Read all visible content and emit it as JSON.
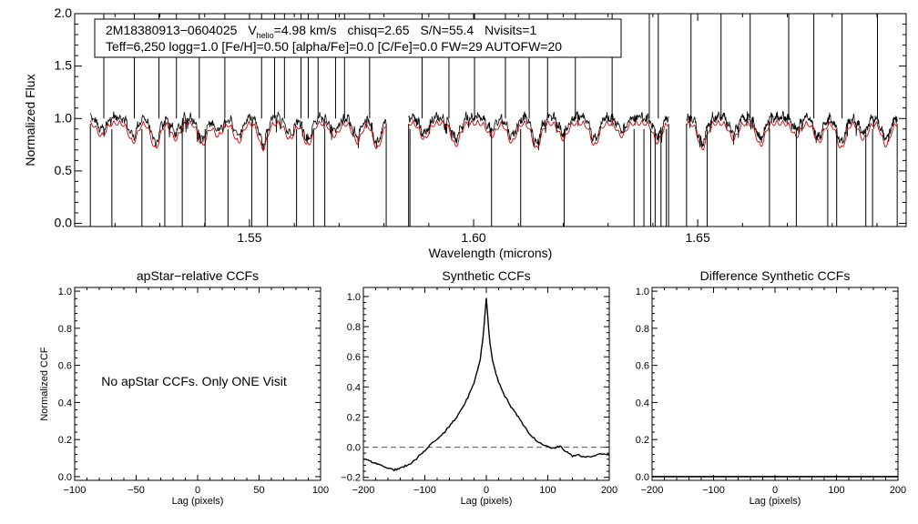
{
  "info": {
    "star_id": "2M18380913−0604025",
    "vhelio_label": "V",
    "vhelio_sub": "helio",
    "vhelio_value": "=4.98 km/s",
    "chisq": "chisq=2.65",
    "snr": "S/N=55.4",
    "nvisits": "Nvisits=1",
    "line2": "Teff=6,250 logg=1.0 [Fe/H]=0.50 [alpha/Fe]=0.0 [C/Fe]=0.0 FW=29 AUTOFW=20"
  },
  "chart_data": [
    {
      "id": "spectrum",
      "type": "line",
      "title": "",
      "xlabel": "Wavelength (microns)",
      "ylabel": "Normalized Flux",
      "xlim": [
        1.511,
        1.6965
      ],
      "ylim": [
        -0.03,
        2.0
      ],
      "xticks": [
        1.55,
        1.6,
        1.65
      ],
      "xtick_labels": [
        "1.55",
        "1.60",
        "1.65"
      ],
      "yticks": [
        0.0,
        0.5,
        1.0,
        1.5,
        2.0
      ],
      "ytick_labels": [
        "0.0",
        "0.5",
        "1.0",
        "1.5",
        "2.0"
      ],
      "chips": [
        [
          1.5145,
          1.5805
        ],
        [
          1.5855,
          1.6435
        ],
        [
          1.6475,
          1.6945
        ]
      ],
      "series": [
        {
          "name": "observed",
          "color": "#000000"
        },
        {
          "name": "model",
          "color": "#d40000"
        }
      ],
      "spikes_up": [
        1.5175,
        1.5243,
        1.5298,
        1.5337,
        1.5388,
        1.5445,
        1.5527,
        1.5556,
        1.5578,
        1.5615,
        1.5631,
        1.5653,
        1.5692,
        1.5712,
        1.5768,
        1.5885,
        1.5945,
        1.6002,
        1.6071,
        1.6124,
        1.6165,
        1.6227,
        1.6309,
        1.6392,
        1.6412,
        1.6485,
        1.6552,
        1.6617,
        1.6703,
        1.6759,
        1.6822,
        1.6901
      ],
      "spikes_down": [
        1.5193,
        1.526,
        1.5311,
        1.535,
        1.5401,
        1.5452,
        1.5505,
        1.554,
        1.5605,
        1.5643,
        1.5668,
        1.5858,
        1.604,
        1.6105,
        1.6202,
        1.6358,
        1.638,
        1.6395,
        1.6405,
        1.6418,
        1.643,
        1.6521,
        1.666,
        1.672,
        1.679,
        1.681,
        1.6875,
        1.689
      ]
    },
    {
      "id": "apstar_ccf",
      "type": "line",
      "title": "apStar−relative CCFs",
      "xlabel": "Lag (pixels)",
      "ylabel": "Normalized CCF",
      "xlim": [
        -100,
        100
      ],
      "ylim": [
        -0.02,
        1.02
      ],
      "xticks": [
        -100,
        -50,
        0,
        50,
        100
      ],
      "xtick_labels": [
        "−100",
        "−50",
        "0",
        "50",
        "100"
      ],
      "yticks": [
        0.0,
        0.2,
        0.4,
        0.6,
        0.8,
        1.0
      ],
      "ytick_labels": [
        "0.0",
        "0.2",
        "0.4",
        "0.6",
        "0.8",
        "1.0"
      ],
      "annotation": "No apStar CCFs.  Only ONE Visit"
    },
    {
      "id": "synthetic_ccf",
      "type": "line",
      "title": "Synthetic CCFs",
      "xlabel": "Lag (pixels)",
      "ylabel": "",
      "xlim": [
        -200,
        200
      ],
      "ylim": [
        -0.22,
        1.06
      ],
      "xticks": [
        -200,
        -100,
        0,
        100,
        200
      ],
      "xtick_labels": [
        "−200",
        "−100",
        "0",
        "100",
        "200"
      ],
      "yticks": [
        -0.2,
        0.0,
        0.2,
        0.4,
        0.6,
        0.8,
        1.0
      ],
      "ytick_labels": [
        "−0.2",
        "0.0",
        "0.2",
        "0.4",
        "0.6",
        "0.8",
        "1.0"
      ],
      "zero_line": 0.0,
      "series": [
        {
          "name": "ccf",
          "x": [
            -200,
            -190,
            -180,
            -170,
            -160,
            -150,
            -140,
            -130,
            -120,
            -110,
            -100,
            -90,
            -80,
            -70,
            -60,
            -50,
            -40,
            -30,
            -20,
            -10,
            -5,
            0,
            5,
            10,
            20,
            30,
            40,
            50,
            60,
            70,
            80,
            90,
            100,
            110,
            120,
            130,
            140,
            150,
            160,
            170,
            180,
            190,
            200
          ],
          "y": [
            -0.08,
            -0.09,
            -0.11,
            -0.12,
            -0.14,
            -0.15,
            -0.14,
            -0.12,
            -0.1,
            -0.06,
            -0.02,
            0.02,
            0.05,
            0.09,
            0.14,
            0.19,
            0.25,
            0.33,
            0.43,
            0.58,
            0.74,
            0.99,
            0.72,
            0.57,
            0.43,
            0.34,
            0.27,
            0.21,
            0.15,
            0.09,
            0.05,
            0.02,
            0.01,
            -0.01,
            0.01,
            -0.03,
            -0.06,
            -0.05,
            -0.07,
            -0.06,
            -0.05,
            -0.04,
            -0.05
          ]
        }
      ]
    },
    {
      "id": "difference_ccf",
      "type": "line",
      "title": "Difference Synthetic CCFs",
      "xlabel": "Lag (pixels)",
      "ylabel": "",
      "xlim": [
        -200,
        200
      ],
      "ylim": [
        -0.02,
        1.02
      ],
      "xticks": [
        -200,
        -100,
        0,
        100,
        200
      ],
      "xtick_labels": [
        "−200",
        "−100",
        "0",
        "100",
        "200"
      ],
      "yticks": [
        0.0,
        0.2,
        0.4,
        0.6,
        0.8,
        1.0
      ],
      "ytick_labels": [
        "0.0",
        "0.2",
        "0.4",
        "0.6",
        "0.8",
        "1.0"
      ],
      "series": [
        {
          "name": "difference",
          "x": [
            -200,
            200
          ],
          "y": [
            0.0,
            0.0
          ]
        }
      ]
    }
  ]
}
